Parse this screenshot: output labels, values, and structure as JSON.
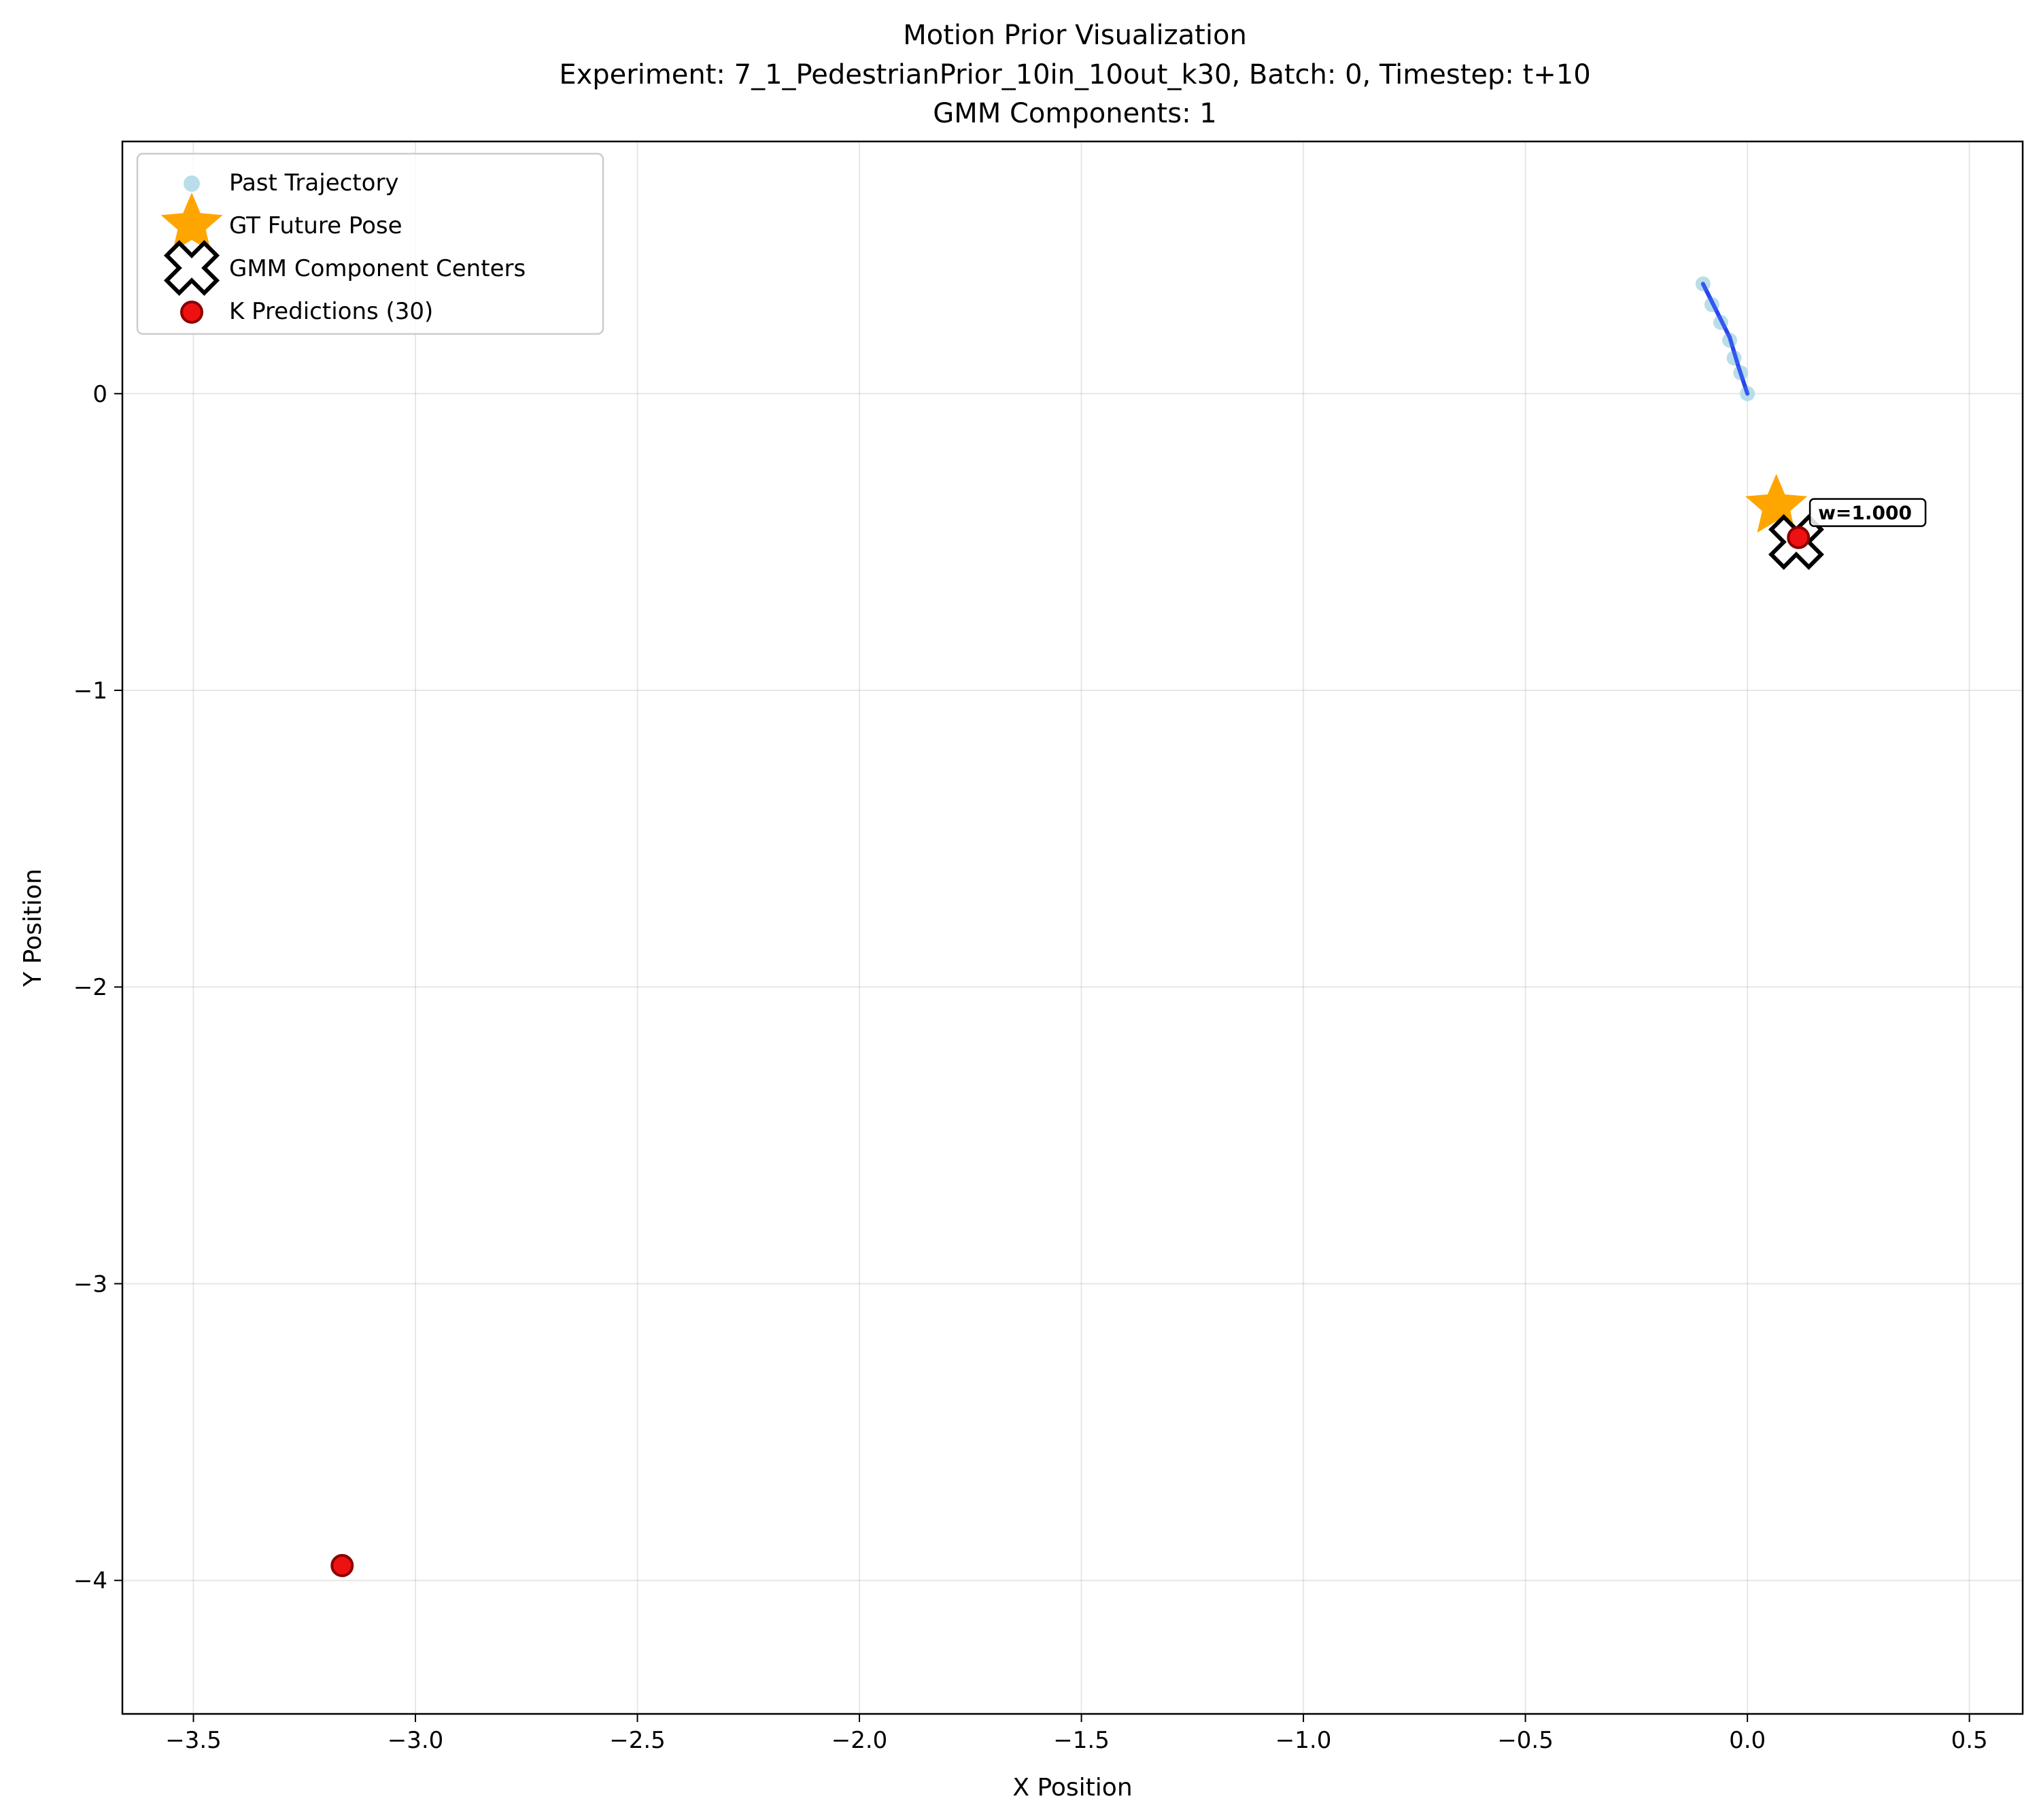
{
  "chart_data": {
    "type": "scatter",
    "title_lines": [
      "Motion Prior Visualization",
      "Experiment: 7_1_PedestrianPrior_10in_10out_k30, Batch: 0, Timestep: t+10",
      "GMM Components: 1"
    ],
    "xlabel": "X Position",
    "ylabel": "Y Position",
    "xlim": [
      -3.66,
      0.62
    ],
    "ylim": [
      -4.45,
      0.85
    ],
    "x_ticks": [
      -3.5,
      -3.0,
      -2.5,
      -2.0,
      -1.5,
      -1.0,
      -0.5,
      0.0,
      0.5
    ],
    "x_tick_labels": [
      "−3.5",
      "−3.0",
      "−2.5",
      "−2.0",
      "−1.5",
      "−1.0",
      "−0.5",
      "0.0",
      "0.5"
    ],
    "y_ticks": [
      -4,
      -3,
      -2,
      -1,
      0
    ],
    "y_tick_labels": [
      "−4",
      "−3",
      "−2",
      "−1",
      "0"
    ],
    "grid": true,
    "legend_position": "top-left",
    "series": [
      {
        "name": "Past Trajectory",
        "kind": "scatter",
        "color": "#add8e6",
        "points": [
          [
            -0.1,
            0.37
          ],
          [
            -0.08,
            0.3
          ],
          [
            -0.06,
            0.24
          ],
          [
            -0.04,
            0.18
          ],
          [
            -0.03,
            0.12
          ],
          [
            -0.015,
            0.07
          ],
          [
            0.0,
            0.0
          ]
        ]
      },
      {
        "kind": "line",
        "color": "#2244ee",
        "points": [
          [
            -0.1,
            0.37
          ],
          [
            -0.07,
            0.28
          ],
          [
            -0.04,
            0.19
          ],
          [
            -0.02,
            0.09
          ],
          [
            0.0,
            0.0
          ]
        ]
      },
      {
        "name": "GT Future Pose",
        "kind": "star",
        "color": "#ffa500",
        "points": [
          [
            0.065,
            -0.38
          ]
        ]
      },
      {
        "name": "GMM Component Centers",
        "kind": "cross",
        "color": "#ffffff",
        "points": [
          [
            0.11,
            -0.5
          ]
        ]
      },
      {
        "name": "K Predictions (30)",
        "kind": "scatter",
        "color": "#ee1111",
        "points": [
          [
            0.115,
            -0.485
          ],
          [
            -3.165,
            -3.95
          ]
        ]
      }
    ],
    "annotations": [
      {
        "text": "w=1.000",
        "x": 0.15,
        "y": -0.41
      }
    ]
  }
}
